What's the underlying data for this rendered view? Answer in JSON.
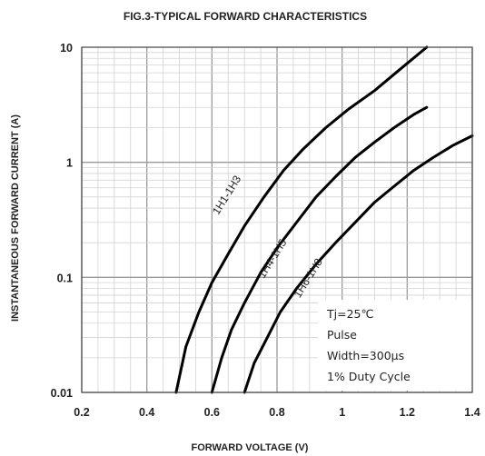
{
  "chart_data": {
    "type": "line",
    "title": "FIG.3-TYPICAL FORWARD CHARACTERISTICS",
    "xlabel": "FORWARD VOLTAGE (V)",
    "ylabel": "INSTANTANEOUS FORWARD CURRENT (A)",
    "xlim": [
      0.2,
      1.4
    ],
    "ylim": [
      0.01,
      10
    ],
    "y_scale": "log",
    "grid": true,
    "x_ticks": [
      "0.2",
      "0.4",
      "0.6",
      "0.8",
      "1",
      "1.2",
      "1.4"
    ],
    "y_ticks": [
      "0.01",
      "0.1",
      "1",
      "10"
    ],
    "series": [
      {
        "name": "1H1-1H3",
        "x": [
          0.49,
          0.52,
          0.56,
          0.6,
          0.65,
          0.7,
          0.76,
          0.82,
          0.88,
          0.95,
          1.02,
          1.1,
          1.18,
          1.26
        ],
        "y": [
          0.01,
          0.025,
          0.05,
          0.09,
          0.16,
          0.28,
          0.5,
          0.85,
          1.3,
          2.0,
          2.9,
          4.2,
          6.5,
          10.0
        ]
      },
      {
        "name": "1H4-1H5",
        "x": [
          0.6,
          0.63,
          0.66,
          0.7,
          0.75,
          0.8,
          0.86,
          0.92,
          0.98,
          1.04,
          1.1,
          1.16,
          1.22,
          1.26
        ],
        "y": [
          0.01,
          0.02,
          0.035,
          0.06,
          0.11,
          0.18,
          0.3,
          0.5,
          0.75,
          1.1,
          1.5,
          2.0,
          2.6,
          3.0
        ]
      },
      {
        "name": "1H6-1H8",
        "x": [
          0.7,
          0.73,
          0.77,
          0.81,
          0.86,
          0.92,
          0.98,
          1.04,
          1.1,
          1.16,
          1.22,
          1.28,
          1.34,
          1.4
        ],
        "y": [
          0.01,
          0.018,
          0.03,
          0.05,
          0.08,
          0.13,
          0.2,
          0.3,
          0.45,
          0.62,
          0.85,
          1.1,
          1.4,
          1.7
        ]
      }
    ],
    "annotations": [
      "Tj=25℃",
      "Pulse",
      "Width=300µs",
      "1% Duty Cycle"
    ]
  }
}
